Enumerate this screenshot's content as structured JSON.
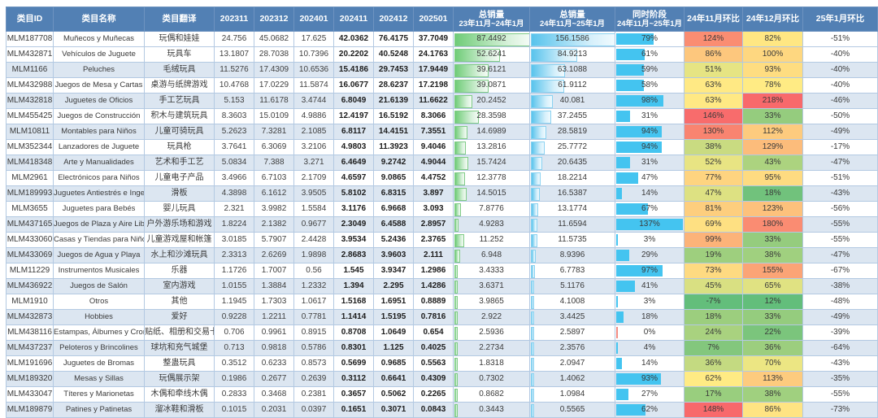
{
  "table": {
    "columns": [
      {
        "label": "类目ID"
      },
      {
        "label": "类目名称"
      },
      {
        "label": "类目翻译"
      },
      {
        "label": "202311"
      },
      {
        "label": "202312"
      },
      {
        "label": "202401"
      },
      {
        "label": "202411"
      },
      {
        "label": "202412"
      },
      {
        "label": "202501"
      },
      {
        "label": "总销量",
        "label2": "23年11月~24年1月"
      },
      {
        "label": "总销量",
        "label2": "24年11月~25年1月"
      },
      {
        "label": "同时阶段",
        "label2": "24年11月~25年1月"
      },
      {
        "label": "24年11月环比"
      },
      {
        "label": "24年12月环比"
      },
      {
        "label": "25年1月环比"
      }
    ],
    "rows": [
      {
        "id": "MLM187708",
        "name": "Muñecos y Muñecas",
        "trans": "玩偶和娃娃",
        "months": [
          "24.756",
          "45.0682",
          "17.625",
          "42.0362",
          "76.4175",
          "37.7049"
        ],
        "total_prev": "87.4492",
        "total_curr": "156.1586",
        "yoy": "79%",
        "mom_nov": "124%",
        "mom_dec": "82%",
        "mom_jan": "-51%"
      },
      {
        "id": "MLM432871",
        "name": "Vehículos de Juguete",
        "trans": "玩具车",
        "months": [
          "13.1807",
          "28.7038",
          "10.7396",
          "20.2202",
          "40.5248",
          "24.1763"
        ],
        "total_prev": "52.6241",
        "total_curr": "84.9213",
        "yoy": "61%",
        "mom_nov": "86%",
        "mom_dec": "100%",
        "mom_jan": "-40%"
      },
      {
        "id": "MLM1166",
        "name": "Peluches",
        "trans": "毛绒玩具",
        "months": [
          "11.5276",
          "17.4309",
          "10.6536",
          "15.4186",
          "29.7453",
          "17.9449"
        ],
        "total_prev": "39.6121",
        "total_curr": "63.1088",
        "yoy": "59%",
        "mom_nov": "51%",
        "mom_dec": "93%",
        "mom_jan": "-40%"
      },
      {
        "id": "MLM432988",
        "name": "Juegos de Mesa y Cartas",
        "trans": "桌游与纸牌游戏",
        "months": [
          "10.4768",
          "17.0229",
          "11.5874",
          "16.0677",
          "28.6237",
          "17.2198"
        ],
        "total_prev": "39.0871",
        "total_curr": "61.9112",
        "yoy": "58%",
        "mom_nov": "63%",
        "mom_dec": "78%",
        "mom_jan": "-40%"
      },
      {
        "id": "MLM432818",
        "name": "Juguetes de Oficios",
        "trans": "手工艺玩具",
        "months": [
          "5.153",
          "11.6178",
          "3.4744",
          "6.8049",
          "21.6139",
          "11.6622"
        ],
        "total_prev": "20.2452",
        "total_curr": "40.081",
        "yoy": "98%",
        "mom_nov": "63%",
        "mom_dec": "218%",
        "mom_jan": "-46%"
      },
      {
        "id": "MLM455425",
        "name": "Juegos de Construcción",
        "trans": "积木与建筑玩具",
        "months": [
          "8.3603",
          "15.0109",
          "4.9886",
          "12.4197",
          "16.5192",
          "8.3066"
        ],
        "total_prev": "28.3598",
        "total_curr": "37.2455",
        "yoy": "31%",
        "mom_nov": "146%",
        "mom_dec": "33%",
        "mom_jan": "-50%"
      },
      {
        "id": "MLM10811",
        "name": "Montables para Niños",
        "trans": "儿童可骑玩具",
        "months": [
          "5.2623",
          "7.3281",
          "2.1085",
          "6.8117",
          "14.4151",
          "7.3551"
        ],
        "total_prev": "14.6989",
        "total_curr": "28.5819",
        "yoy": "94%",
        "mom_nov": "130%",
        "mom_dec": "112%",
        "mom_jan": "-49%"
      },
      {
        "id": "MLM352344",
        "name": "Lanzadores de Juguete",
        "trans": "玩具枪",
        "months": [
          "3.7641",
          "6.3069",
          "3.2106",
          "4.9803",
          "11.3923",
          "9.4046"
        ],
        "total_prev": "13.2816",
        "total_curr": "25.7772",
        "yoy": "94%",
        "mom_nov": "38%",
        "mom_dec": "129%",
        "mom_jan": "-17%"
      },
      {
        "id": "MLM418348",
        "name": "Arte y Manualidades",
        "trans": "艺术和手工艺",
        "months": [
          "5.0834",
          "7.388",
          "3.271",
          "6.4649",
          "9.2742",
          "4.9044"
        ],
        "total_prev": "15.7424",
        "total_curr": "20.6435",
        "yoy": "31%",
        "mom_nov": "52%",
        "mom_dec": "43%",
        "mom_jan": "-47%"
      },
      {
        "id": "MLM2961",
        "name": "Electrónicos para Niños",
        "trans": "儿童电子产品",
        "months": [
          "3.4966",
          "6.7103",
          "2.1709",
          "4.6597",
          "9.0865",
          "4.4752"
        ],
        "total_prev": "12.3778",
        "total_curr": "18.2214",
        "yoy": "47%",
        "mom_nov": "77%",
        "mom_dec": "95%",
        "mom_jan": "-51%"
      },
      {
        "id": "MLM189993",
        "name": "Juguetes Antiestrés e Ingenio",
        "trans": "滑板",
        "months": [
          "4.3898",
          "6.1612",
          "3.9505",
          "5.8102",
          "6.8315",
          "3.897"
        ],
        "total_prev": "14.5015",
        "total_curr": "16.5387",
        "yoy": "14%",
        "mom_nov": "47%",
        "mom_dec": "18%",
        "mom_jan": "-43%"
      },
      {
        "id": "MLM3655",
        "name": "Juguetes para Bebés",
        "trans": "婴儿玩具",
        "months": [
          "2.321",
          "3.9982",
          "1.5584",
          "3.1176",
          "6.9668",
          "3.093"
        ],
        "total_prev": "7.8776",
        "total_curr": "13.1774",
        "yoy": "67%",
        "mom_nov": "81%",
        "mom_dec": "123%",
        "mom_jan": "-56%"
      },
      {
        "id": "MLM437165",
        "name": "Juegos de Plaza y Aire Libre",
        "trans": "户外游乐场和游戏",
        "months": [
          "1.8224",
          "2.1382",
          "0.9677",
          "2.3049",
          "6.4588",
          "2.8957"
        ],
        "total_prev": "4.9283",
        "total_curr": "11.6594",
        "yoy": "137%",
        "mom_nov": "69%",
        "mom_dec": "180%",
        "mom_jan": "-55%"
      },
      {
        "id": "MLM433060",
        "name": "Casas y Tiendas para Niños",
        "trans": "儿童游戏屋和帐篷",
        "months": [
          "3.0185",
          "5.7907",
          "2.4428",
          "3.9534",
          "5.2436",
          "2.3765"
        ],
        "total_prev": "11.252",
        "total_curr": "11.5735",
        "yoy": "3%",
        "mom_nov": "99%",
        "mom_dec": "33%",
        "mom_jan": "-55%"
      },
      {
        "id": "MLM433069",
        "name": "Juegos de Agua y Playa",
        "trans": "水上和沙滩玩具",
        "months": [
          "2.3313",
          "2.6269",
          "1.9898",
          "2.8683",
          "3.9603",
          "2.111"
        ],
        "total_prev": "6.948",
        "total_curr": "8.9396",
        "yoy": "29%",
        "mom_nov": "19%",
        "mom_dec": "38%",
        "mom_jan": "-47%"
      },
      {
        "id": "MLM11229",
        "name": "Instrumentos Musicales",
        "trans": "乐器",
        "months": [
          "1.1726",
          "1.7007",
          "0.56",
          "1.545",
          "3.9347",
          "1.2986"
        ],
        "total_prev": "3.4333",
        "total_curr": "6.7783",
        "yoy": "97%",
        "mom_nov": "73%",
        "mom_dec": "155%",
        "mom_jan": "-67%"
      },
      {
        "id": "MLM436922",
        "name": "Juegos de Salón",
        "trans": "室内游戏",
        "months": [
          "1.0155",
          "1.3884",
          "1.2332",
          "1.394",
          "2.295",
          "1.4286"
        ],
        "total_prev": "3.6371",
        "total_curr": "5.1176",
        "yoy": "41%",
        "mom_nov": "45%",
        "mom_dec": "65%",
        "mom_jan": "-38%"
      },
      {
        "id": "MLM1910",
        "name": "Otros",
        "trans": "其他",
        "months": [
          "1.1945",
          "1.7303",
          "1.0617",
          "1.5168",
          "1.6951",
          "0.8889"
        ],
        "total_prev": "3.9865",
        "total_curr": "4.1008",
        "yoy": "3%",
        "mom_nov": "-7%",
        "mom_dec": "12%",
        "mom_jan": "-48%"
      },
      {
        "id": "MLM432873",
        "name": "Hobbies",
        "trans": "爱好",
        "months": [
          "0.9228",
          "1.2211",
          "0.7781",
          "1.1414",
          "1.5195",
          "0.7816"
        ],
        "total_prev": "2.922",
        "total_curr": "3.4425",
        "yoy": "18%",
        "mom_nov": "18%",
        "mom_dec": "33%",
        "mom_jan": "-49%"
      },
      {
        "id": "MLM438116",
        "name": "Estampas, Álbumes y Cromos",
        "trans": "贴纸、相册和交易卡",
        "months": [
          "0.706",
          "0.9961",
          "0.8915",
          "0.8708",
          "1.0649",
          "0.654"
        ],
        "total_prev": "2.5936",
        "total_curr": "2.5897",
        "yoy": "0%",
        "mom_nov": "24%",
        "mom_dec": "22%",
        "mom_jan": "-39%"
      },
      {
        "id": "MLM437237",
        "name": "Peloteros y Brincolines",
        "trans": "球坑和充气城堡",
        "months": [
          "0.713",
          "0.9818",
          "0.5786",
          "0.8301",
          "1.125",
          "0.4025"
        ],
        "total_prev": "2.2734",
        "total_curr": "2.3576",
        "yoy": "4%",
        "mom_nov": "7%",
        "mom_dec": "36%",
        "mom_jan": "-64%"
      },
      {
        "id": "MLM191696",
        "name": "Juguetes de Bromas",
        "trans": "整蛊玩具",
        "months": [
          "0.3512",
          "0.6233",
          "0.8573",
          "0.5699",
          "0.9685",
          "0.5563"
        ],
        "total_prev": "1.8318",
        "total_curr": "2.0947",
        "yoy": "14%",
        "mom_nov": "36%",
        "mom_dec": "70%",
        "mom_jan": "-43%"
      },
      {
        "id": "MLM189320",
        "name": "Mesas y Sillas",
        "trans": "玩偶展示架",
        "months": [
          "0.1986",
          "0.2677",
          "0.2639",
          "0.3112",
          "0.6641",
          "0.4309"
        ],
        "total_prev": "0.7302",
        "total_curr": "1.4062",
        "yoy": "93%",
        "mom_nov": "62%",
        "mom_dec": "113%",
        "mom_jan": "-35%"
      },
      {
        "id": "MLM433047",
        "name": "Títeres y Marionetas",
        "trans": "木偶和牵线木偶",
        "months": [
          "0.2833",
          "0.3468",
          "0.2381",
          "0.3657",
          "0.5062",
          "0.2265"
        ],
        "total_prev": "0.8682",
        "total_curr": "1.0984",
        "yoy": "27%",
        "mom_nov": "17%",
        "mom_dec": "38%",
        "mom_jan": "-55%"
      },
      {
        "id": "MLM189879",
        "name": "Patines y Patinetas",
        "trans": "溜冰鞋和滑板",
        "months": [
          "0.1015",
          "0.2031",
          "0.0397",
          "0.1651",
          "0.3071",
          "0.0843"
        ],
        "total_prev": "0.3443",
        "total_curr": "0.5565",
        "yoy": "62%",
        "mom_nov": "148%",
        "mom_dec": "86%",
        "mom_jan": "-73%"
      }
    ]
  },
  "colors": {
    "header_bg": "#5280b4",
    "header_text": "#ffffff",
    "band_row_bg": "#dce6f1",
    "grid_border": "#b3c9e2",
    "bar_green": "#6fcc77",
    "bar_green_border": "#7fcb86",
    "bar_blue": "#58c3ec",
    "bar_blue_border": "#8ad2f1",
    "bar_solid_cyan": "#44c4f0",
    "bar_negative_red": "#f28b82",
    "scale_min_green": "#63be7b",
    "scale_mid_yellow": "#ffeb84",
    "scale_max_red": "#f8696b"
  }
}
